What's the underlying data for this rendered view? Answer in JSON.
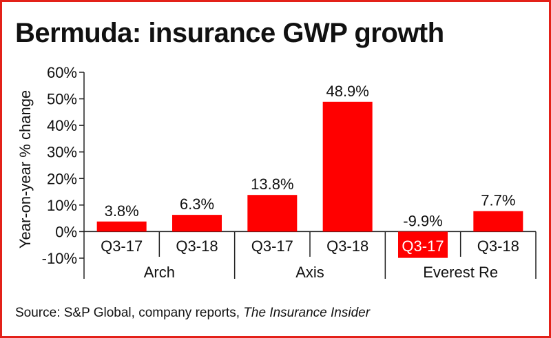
{
  "title": "Bermuda: insurance GWP growth",
  "source": {
    "prefix": "Source: S&P Global, company reports, ",
    "italic": "The Insurance Insider"
  },
  "colors": {
    "bar": "#ff0000",
    "frame": "#e32119",
    "text": "#111111",
    "axis": "#222222"
  },
  "chart_data": {
    "type": "bar",
    "ylabel": "Year-on-year % change",
    "ylim": [
      -10,
      60
    ],
    "yticks": [
      60,
      50,
      40,
      30,
      20,
      10,
      0,
      -10
    ],
    "ytick_labels": [
      "60%",
      "50%",
      "40%",
      "30%",
      "20%",
      "10%",
      "0%",
      "-10%"
    ],
    "groups": [
      "Arch",
      "Axis",
      "Everest Re"
    ],
    "categories": [
      "Q3-17",
      "Q3-18",
      "Q3-17",
      "Q3-18",
      "Q3-17",
      "Q3-18"
    ],
    "values": [
      3.8,
      6.3,
      13.8,
      48.9,
      -9.9,
      7.7
    ],
    "value_labels": [
      "3.8%",
      "6.3%",
      "13.8%",
      "48.9%",
      "-9.9%",
      "7.7%"
    ],
    "grid": false,
    "legend": "none"
  }
}
